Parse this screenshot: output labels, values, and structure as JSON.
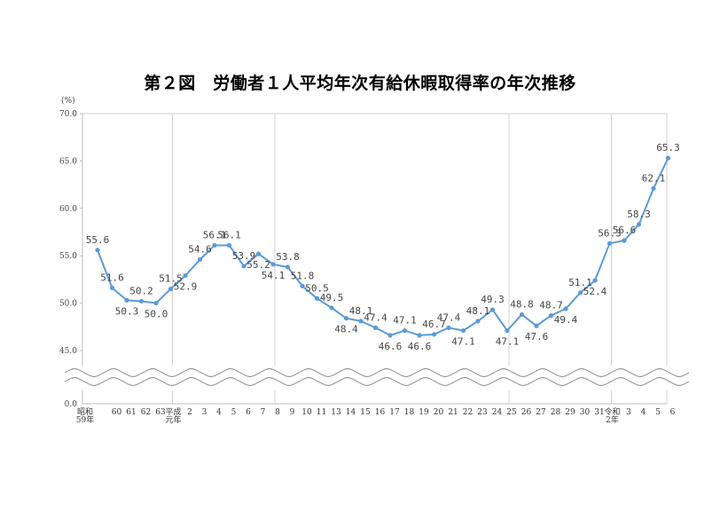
{
  "chart_data": {
    "type": "line",
    "title": "第２図　労働者１人平均年次有給休暇取得率の年次推移",
    "ylabel": "(%)",
    "ylim": [
      45.0,
      70.0
    ],
    "yticks": [
      "70.0",
      "65.0",
      "60.0",
      "55.0",
      "50.0",
      "45.0"
    ],
    "y_zero_label": "0.0",
    "axis_break": true,
    "grid": "vertical-at-era-boundaries",
    "line_color": "#5b9bd5",
    "categories": [
      "昭和59年",
      "60",
      "61",
      "62",
      "63",
      "平成元年",
      "2",
      "3",
      "4",
      "5",
      "6",
      "7",
      "8",
      "9",
      "10",
      "11",
      "13",
      "14",
      "15",
      "16",
      "17",
      "18",
      "19",
      "20",
      "21",
      "22",
      "23",
      "24",
      "25",
      "26",
      "27",
      "28",
      "29",
      "30",
      "31",
      "令和2年",
      "3",
      "4",
      "5",
      "6"
    ],
    "series": [
      {
        "values": [
          55.6,
          51.6,
          50.3,
          50.2,
          50.0,
          51.5,
          52.9,
          54.6,
          56.1,
          56.1,
          53.9,
          55.2,
          54.1,
          53.8,
          51.8,
          50.5,
          49.5,
          48.4,
          48.1,
          47.4,
          46.6,
          47.1,
          46.6,
          46.7,
          47.4,
          47.1,
          48.1,
          49.3,
          47.1,
          48.8,
          47.6,
          48.7,
          49.4,
          51.1,
          52.4,
          56.3,
          56.6,
          58.3,
          62.1,
          65.3
        ]
      }
    ]
  }
}
